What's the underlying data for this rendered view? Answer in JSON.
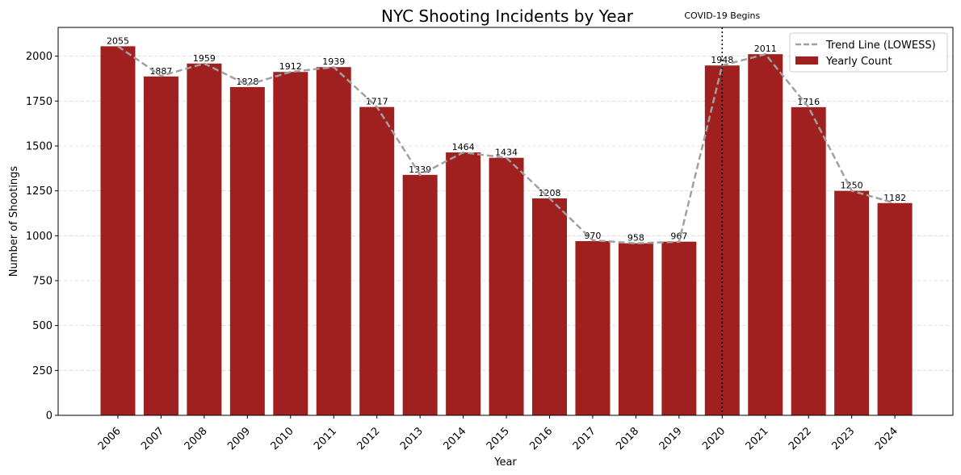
{
  "chart_data": {
    "type": "bar",
    "title": "NYC Shooting Incidents by Year",
    "xlabel": "Year",
    "ylabel": "Number of Shootings",
    "categories": [
      "2006",
      "2007",
      "2008",
      "2009",
      "2010",
      "2011",
      "2012",
      "2013",
      "2014",
      "2015",
      "2016",
      "2017",
      "2018",
      "2019",
      "2020",
      "2021",
      "2022",
      "2023",
      "2024"
    ],
    "series": [
      {
        "name": "Yearly Count",
        "kind": "bar",
        "color": "#a02020",
        "values": [
          2055,
          1887,
          1959,
          1828,
          1912,
          1939,
          1717,
          1339,
          1464,
          1434,
          1208,
          970,
          958,
          967,
          1948,
          2011,
          1716,
          1250,
          1182
        ]
      },
      {
        "name": "Trend Line (LOWESS)",
        "kind": "line",
        "style": "dashed",
        "color": "#a0a0a0",
        "values": [
          2055,
          1890,
          1959,
          1840,
          1912,
          1939,
          1717,
          1339,
          1464,
          1434,
          1208,
          975,
          958,
          967,
          1948,
          2011,
          1716,
          1250,
          1182
        ]
      }
    ],
    "ylim": [
      0,
      2160
    ],
    "yticks": [
      0,
      250,
      500,
      750,
      1000,
      1250,
      1500,
      1750,
      2000
    ],
    "grid": "y-dashed",
    "legend_position": "top-right",
    "annotation": {
      "category": "2020",
      "text": "COVID-19 Begins",
      "style": "dotted-vertical-line",
      "color": "#000000"
    }
  }
}
